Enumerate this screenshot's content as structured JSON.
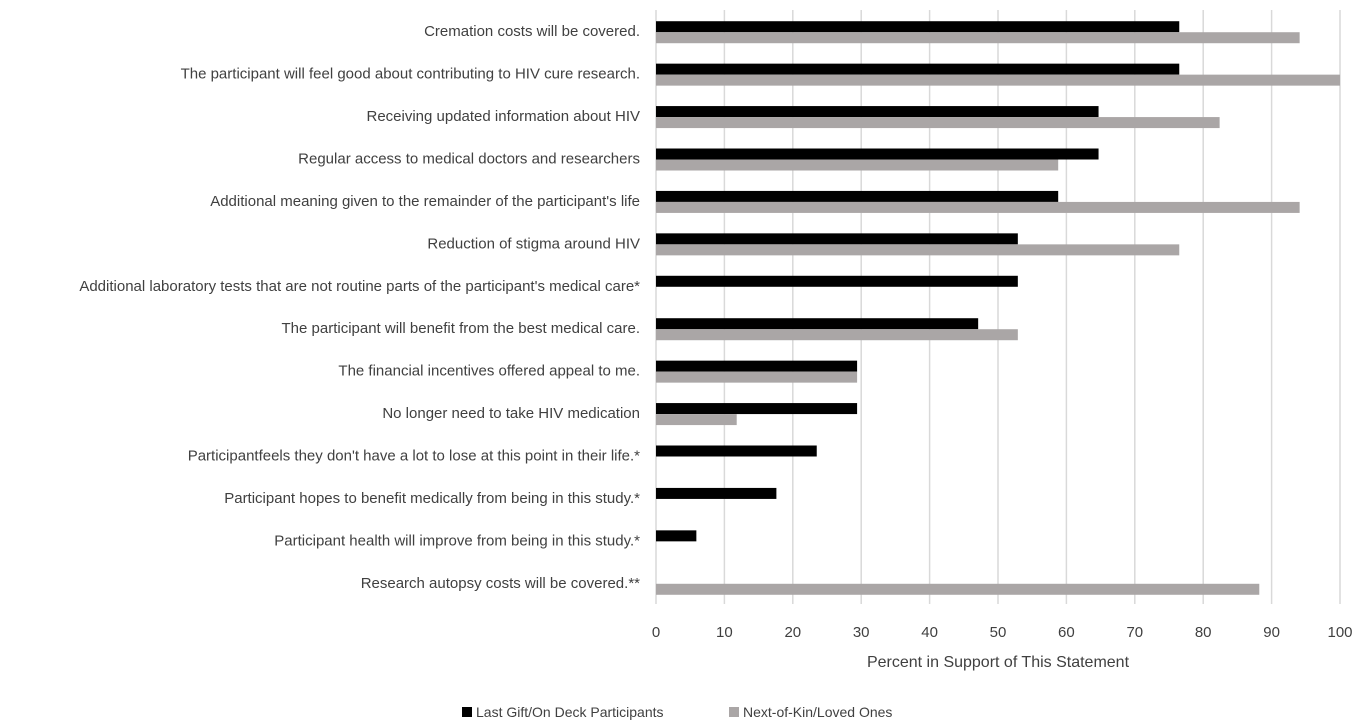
{
  "chart_data": {
    "type": "bar",
    "orientation": "horizontal",
    "categories": [
      "Cremation costs will be covered.",
      "The participant will feel good about contributing to HIV cure research.",
      "Receiving updated information about HIV",
      "Regular access to medical doctors and researchers",
      "Additional meaning given to the remainder of the participant's life",
      "Reduction of stigma around HIV",
      "Additional laboratory tests that are not routine parts of the participant's medical care*",
      "The participant will benefit from the best medical care.",
      "The financial incentives offered appeal to me.",
      "No longer need to take HIV medication",
      "Participantfeels they don't have a lot to lose at this point in their life.*",
      "Participant hopes to benefit medically from being in this study.*",
      "Participant health will improve from being in this study.*",
      "Research autopsy costs will be covered.**"
    ],
    "series": [
      {
        "name": "Last Gift/On Deck Participants",
        "color": "#000000",
        "values": [
          76.5,
          76.5,
          64.7,
          64.7,
          58.8,
          52.9,
          52.9,
          47.1,
          29.4,
          29.4,
          23.5,
          17.6,
          5.9,
          0
        ]
      },
      {
        "name": "Next-of-Kin/Loved Ones",
        "color": "#aaa6a6",
        "values": [
          94.1,
          100,
          82.4,
          58.8,
          94.1,
          76.5,
          0,
          52.9,
          29.4,
          11.8,
          0,
          0,
          0,
          88.2
        ]
      }
    ],
    "xlabel": "Percent in Support of This Statement",
    "ylabel": "",
    "xlim": [
      0,
      100
    ],
    "xticks": [
      0,
      10,
      20,
      30,
      40,
      50,
      60,
      70,
      80,
      90,
      100
    ],
    "grid": "vertical",
    "legend": "bottom-center"
  }
}
